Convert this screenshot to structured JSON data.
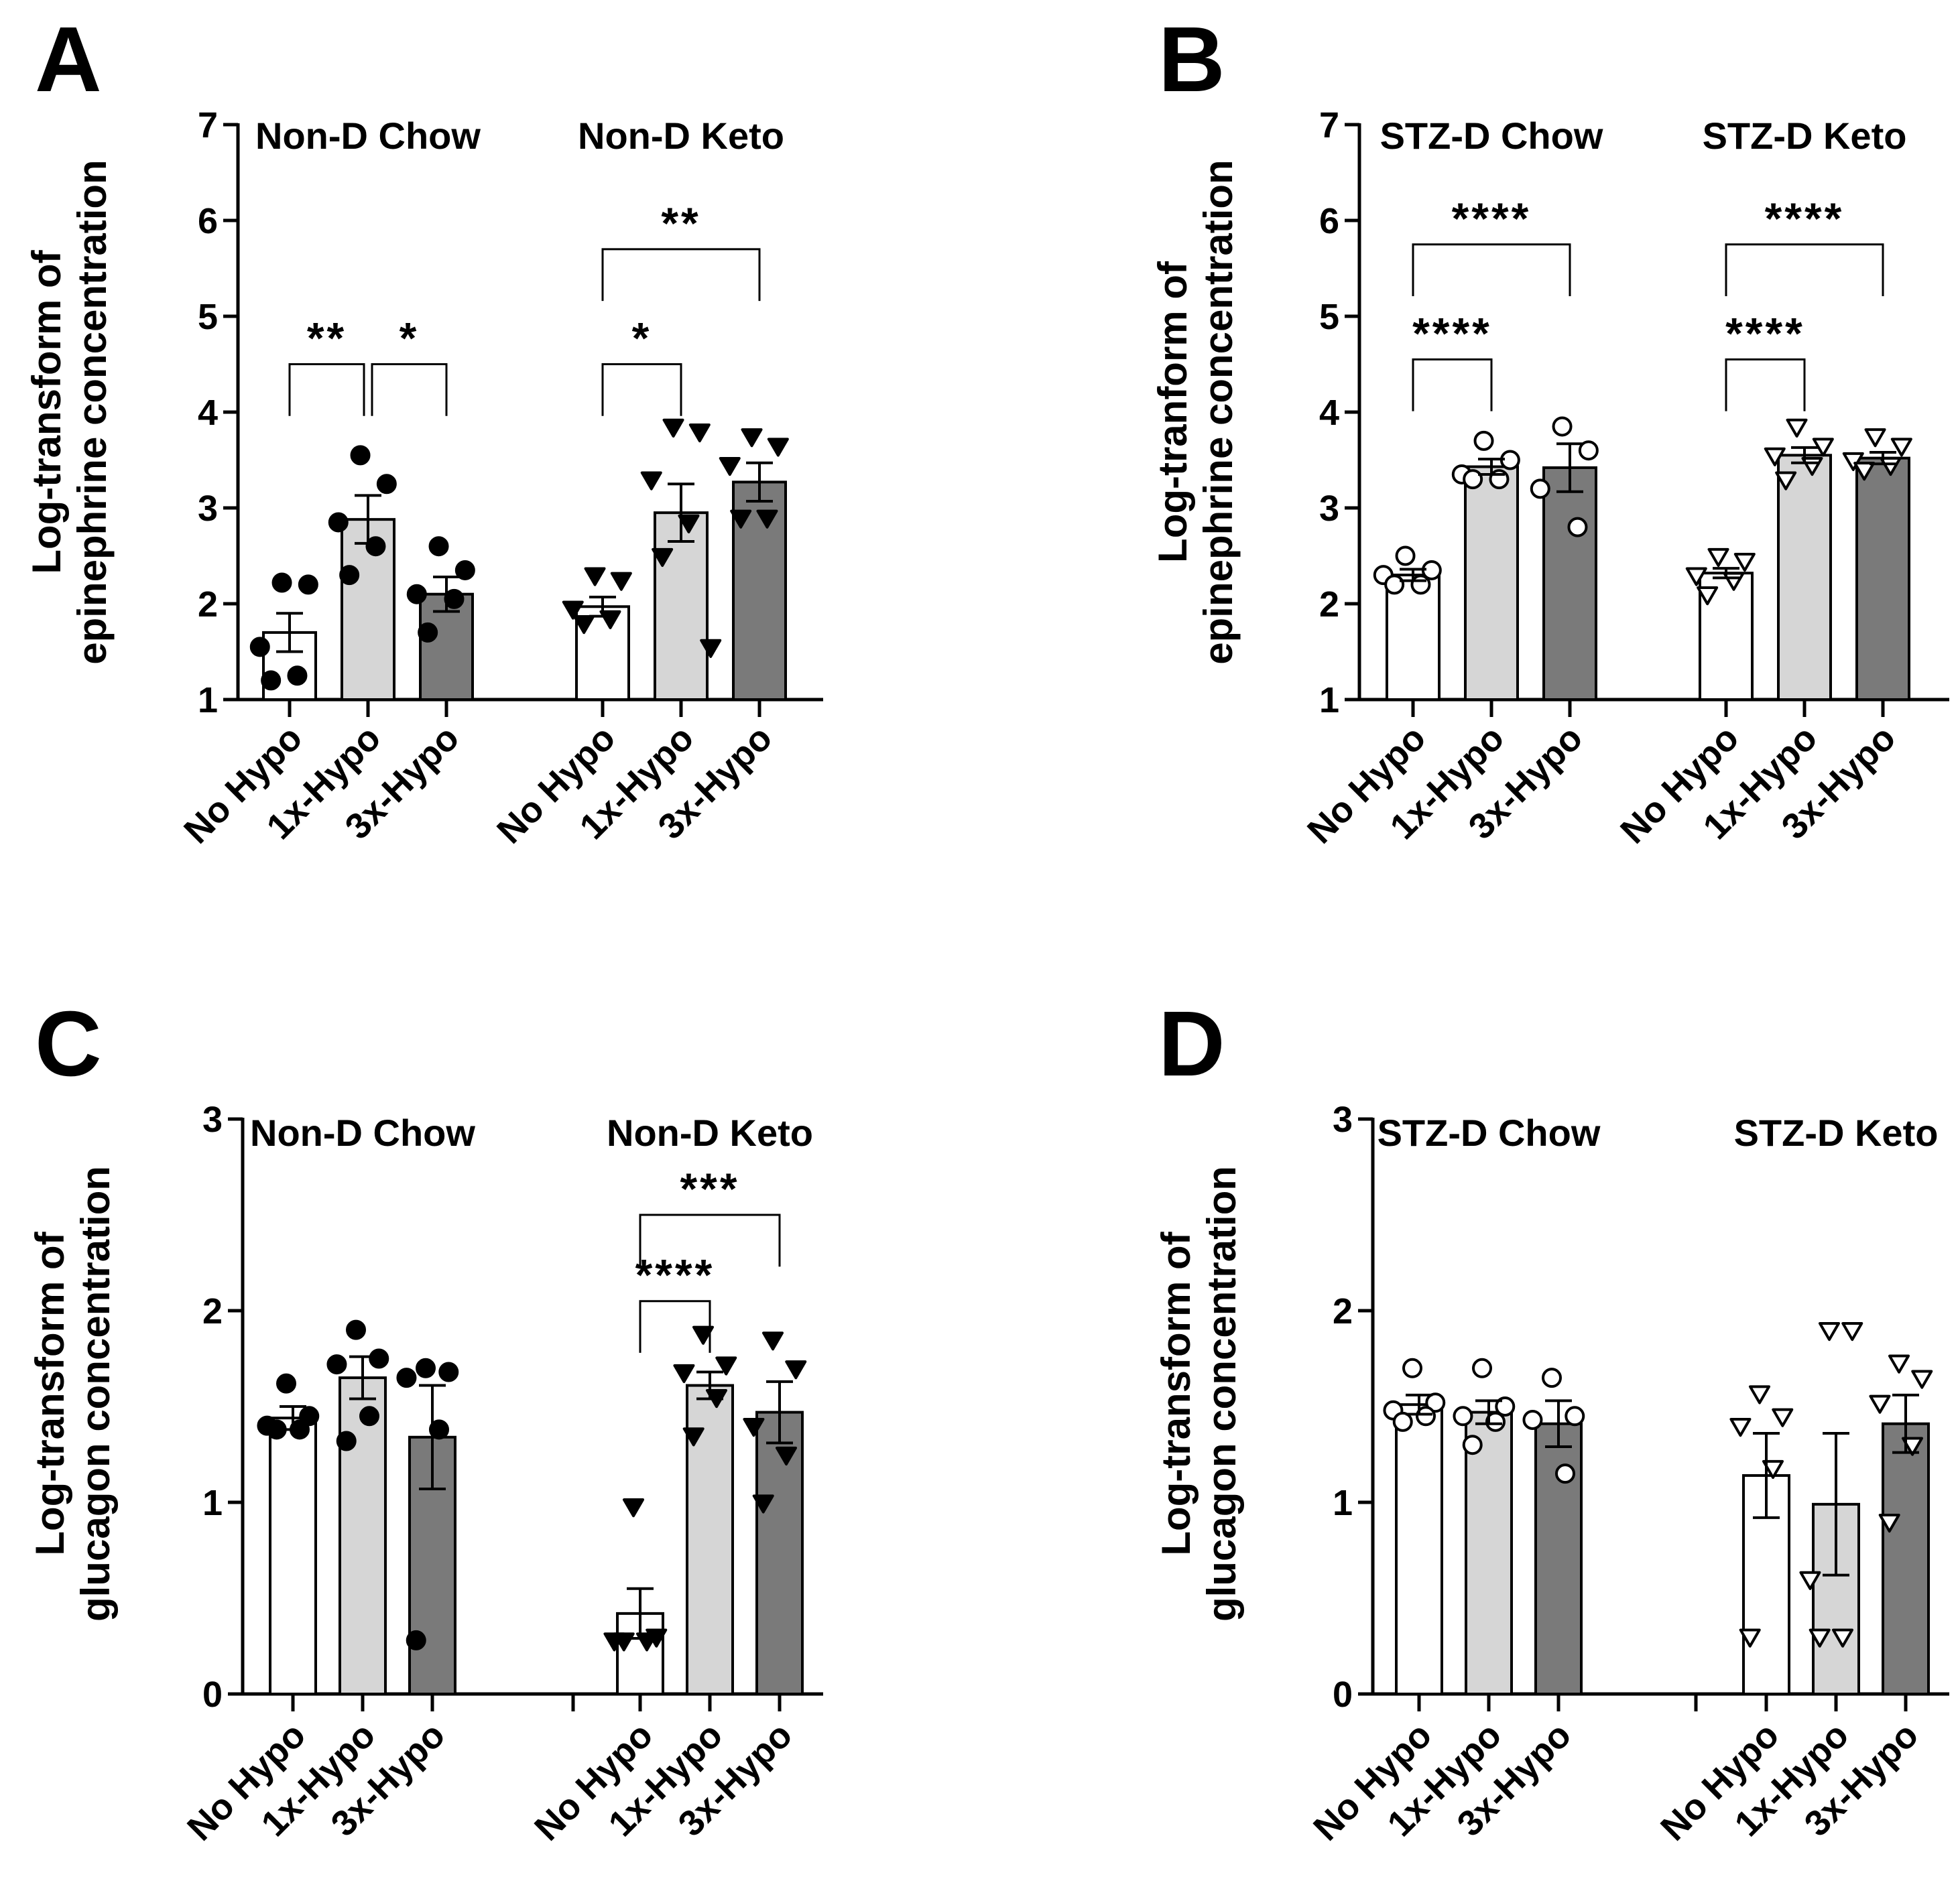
{
  "chart_data": [
    {
      "panel": "A",
      "type": "bar",
      "ylabel": [
        "Log-transform of",
        "epinephrine concentration"
      ],
      "ylim": [
        1,
        7
      ],
      "yticks": [
        "1",
        "2",
        "3",
        "4",
        "5",
        "6",
        "7"
      ],
      "groups": [
        {
          "title": "Non-D Chow",
          "marker": "circle",
          "filled": true,
          "bars": [
            {
              "category": "No Hypo",
              "mean": 1.7,
              "sem": 0.2,
              "color": "#ffffff",
              "points": [
                2.22,
                2.2,
                1.55,
                1.25,
                1.2
              ]
            },
            {
              "category": "1x-Hypo",
              "mean": 2.88,
              "sem": 0.25,
              "color": "#d6d6d6",
              "points": [
                3.55,
                3.25,
                2.85,
                2.6,
                2.3
              ]
            },
            {
              "category": "3x-Hypo",
              "mean": 2.1,
              "sem": 0.18,
              "color": "#7a7a7a",
              "points": [
                2.6,
                2.35,
                2.1,
                2.05,
                1.7
              ]
            }
          ]
        },
        {
          "title": "Non-D Keto",
          "marker": "triangle-down",
          "filled": true,
          "bars": [
            {
              "category": "No Hypo",
              "mean": 1.97,
              "sem": 0.1,
              "color": "#ffffff",
              "points": [
                2.3,
                2.25,
                1.95,
                1.85,
                1.8
              ]
            },
            {
              "category": "1x-Hypo",
              "mean": 2.95,
              "sem": 0.3,
              "color": "#d6d6d6",
              "points": [
                3.85,
                3.8,
                3.3,
                2.85,
                2.5,
                1.55
              ]
            },
            {
              "category": "3x-Hypo",
              "mean": 3.27,
              "sem": 0.2,
              "color": "#7a7a7a",
              "points": [
                3.75,
                3.65,
                3.45,
                2.9,
                2.9
              ]
            }
          ]
        }
      ],
      "significance": [
        {
          "group": 0,
          "from": 0,
          "to": 1,
          "label": "**",
          "level": 4.5
        },
        {
          "group": 0,
          "from": 1,
          "to": 2,
          "label": "*",
          "level": 4.5
        },
        {
          "group": 1,
          "from": 0,
          "to": 1,
          "label": "*",
          "level": 4.5
        },
        {
          "group": 1,
          "from": 0,
          "to": 2,
          "label": "**",
          "level": 5.7
        }
      ]
    },
    {
      "panel": "B",
      "type": "bar",
      "ylabel": [
        "Log-tranform of",
        "epinephrine concentration"
      ],
      "ylim": [
        1,
        7
      ],
      "yticks": [
        "1",
        "2",
        "3",
        "4",
        "5",
        "6",
        "7"
      ],
      "groups": [
        {
          "title": "STZ-D Chow",
          "marker": "circle",
          "filled": false,
          "bars": [
            {
              "category": "No Hypo",
              "mean": 2.3,
              "sem": 0.06,
              "color": "#ffffff",
              "points": [
                2.5,
                2.35,
                2.3,
                2.2,
                2.2
              ]
            },
            {
              "category": "1x-Hypo",
              "mean": 3.43,
              "sem": 0.08,
              "color": "#d6d6d6",
              "points": [
                3.7,
                3.5,
                3.35,
                3.3,
                3.3
              ]
            },
            {
              "category": "3x-Hypo",
              "mean": 3.42,
              "sem": 0.25,
              "color": "#7a7a7a",
              "points": [
                3.85,
                3.6,
                3.2,
                2.8
              ]
            }
          ]
        },
        {
          "title": "STZ-D Keto",
          "marker": "triangle-down",
          "filled": false,
          "bars": [
            {
              "category": "No Hypo",
              "mean": 2.32,
              "sem": 0.05,
              "color": "#ffffff",
              "points": [
                2.5,
                2.45,
                2.3,
                2.25,
                2.1
              ]
            },
            {
              "category": "1x-Hypo",
              "mean": 3.55,
              "sem": 0.08,
              "color": "#d6d6d6",
              "points": [
                3.85,
                3.65,
                3.55,
                3.45,
                3.3
              ]
            },
            {
              "category": "3x-Hypo",
              "mean": 3.52,
              "sem": 0.06,
              "color": "#7a7a7a",
              "points": [
                3.75,
                3.65,
                3.5,
                3.45,
                3.4
              ]
            }
          ]
        }
      ],
      "significance": [
        {
          "group": 0,
          "from": 0,
          "to": 1,
          "label": "****",
          "level": 4.55
        },
        {
          "group": 0,
          "from": 0,
          "to": 2,
          "label": "****",
          "level": 5.75
        },
        {
          "group": 1,
          "from": 0,
          "to": 1,
          "label": "****",
          "level": 4.55
        },
        {
          "group": 1,
          "from": 0,
          "to": 2,
          "label": "****",
          "level": 5.75
        }
      ]
    },
    {
      "panel": "C",
      "type": "bar",
      "ylabel": [
        "Log-transform of",
        "glucagon concentration"
      ],
      "ylim": [
        0,
        3
      ],
      "yticks": [
        "0",
        "1",
        "2",
        "3"
      ],
      "groups": [
        {
          "title": "Non-D Chow",
          "marker": "circle",
          "filled": true,
          "bars": [
            {
              "category": "No Hypo",
              "mean": 1.44,
              "sem": 0.06,
              "color": "#ffffff",
              "points": [
                1.62,
                1.45,
                1.4,
                1.38,
                1.38
              ]
            },
            {
              "category": "1x-Hypo",
              "mean": 1.65,
              "sem": 0.11,
              "color": "#d6d6d6",
              "points": [
                1.9,
                1.75,
                1.72,
                1.45,
                1.32
              ]
            },
            {
              "category": "3x-Hypo",
              "mean": 1.34,
              "sem": 0.27,
              "color": "#7a7a7a",
              "points": [
                1.7,
                1.68,
                1.65,
                1.38,
                0.28
              ]
            }
          ]
        },
        {
          "title": "Non-D Keto",
          "marker": "triangle-down",
          "filled": true,
          "bars": [
            {
              "category": "No Hypo",
              "mean": 0.42,
              "sem": 0.13,
              "color": "#ffffff",
              "points": [
                0.98,
                0.3,
                0.28,
                0.28,
                0.28
              ]
            },
            {
              "category": "1x-Hypo",
              "mean": 1.61,
              "sem": 0.07,
              "color": "#d6d6d6",
              "points": [
                1.88,
                1.72,
                1.68,
                1.55,
                1.35
              ]
            },
            {
              "category": "3x-Hypo",
              "mean": 1.47,
              "sem": 0.16,
              "color": "#7a7a7a",
              "points": [
                1.85,
                1.7,
                1.4,
                1.25,
                1.0
              ]
            }
          ]
        }
      ],
      "significance": [
        {
          "group": 1,
          "from": 0,
          "to": 1,
          "label": "****",
          "level": 2.05
        },
        {
          "group": 1,
          "from": 0,
          "to": 2,
          "label": "***",
          "level": 2.5
        }
      ]
    },
    {
      "panel": "D",
      "type": "bar",
      "ylabel": [
        "Log-transform of",
        "glucagon concentration"
      ],
      "ylim": [
        0,
        3
      ],
      "yticks": [
        "0",
        "1",
        "2",
        "3"
      ],
      "groups": [
        {
          "title": "STZ-D Chow",
          "marker": "circle",
          "filled": false,
          "bars": [
            {
              "category": "No Hypo",
              "mean": 1.51,
              "sem": 0.05,
              "color": "#ffffff",
              "points": [
                1.7,
                1.52,
                1.48,
                1.45,
                1.42
              ]
            },
            {
              "category": "1x-Hypo",
              "mean": 1.47,
              "sem": 0.06,
              "color": "#d6d6d6",
              "points": [
                1.7,
                1.5,
                1.45,
                1.42,
                1.3
              ]
            },
            {
              "category": "3x-Hypo",
              "mean": 1.41,
              "sem": 0.12,
              "color": "#7a7a7a",
              "points": [
                1.65,
                1.45,
                1.43,
                1.15
              ]
            }
          ]
        },
        {
          "title": "STZ-D Keto",
          "marker": "triangle-down",
          "filled": false,
          "bars": [
            {
              "category": "No Hypo",
              "mean": 1.14,
              "sem": 0.22,
              "color": "#ffffff",
              "points": [
                1.57,
                1.45,
                1.4,
                1.18,
                0.3
              ]
            },
            {
              "category": "1x-Hypo",
              "mean": 0.99,
              "sem": 0.37,
              "color": "#d6d6d6",
              "points": [
                1.9,
                1.9,
                0.6,
                0.3,
                0.3
              ]
            },
            {
              "category": "3x-Hypo",
              "mean": 1.41,
              "sem": 0.15,
              "color": "#7a7a7a",
              "points": [
                1.73,
                1.65,
                1.52,
                1.3,
                0.9
              ]
            }
          ]
        }
      ],
      "significance": []
    }
  ]
}
